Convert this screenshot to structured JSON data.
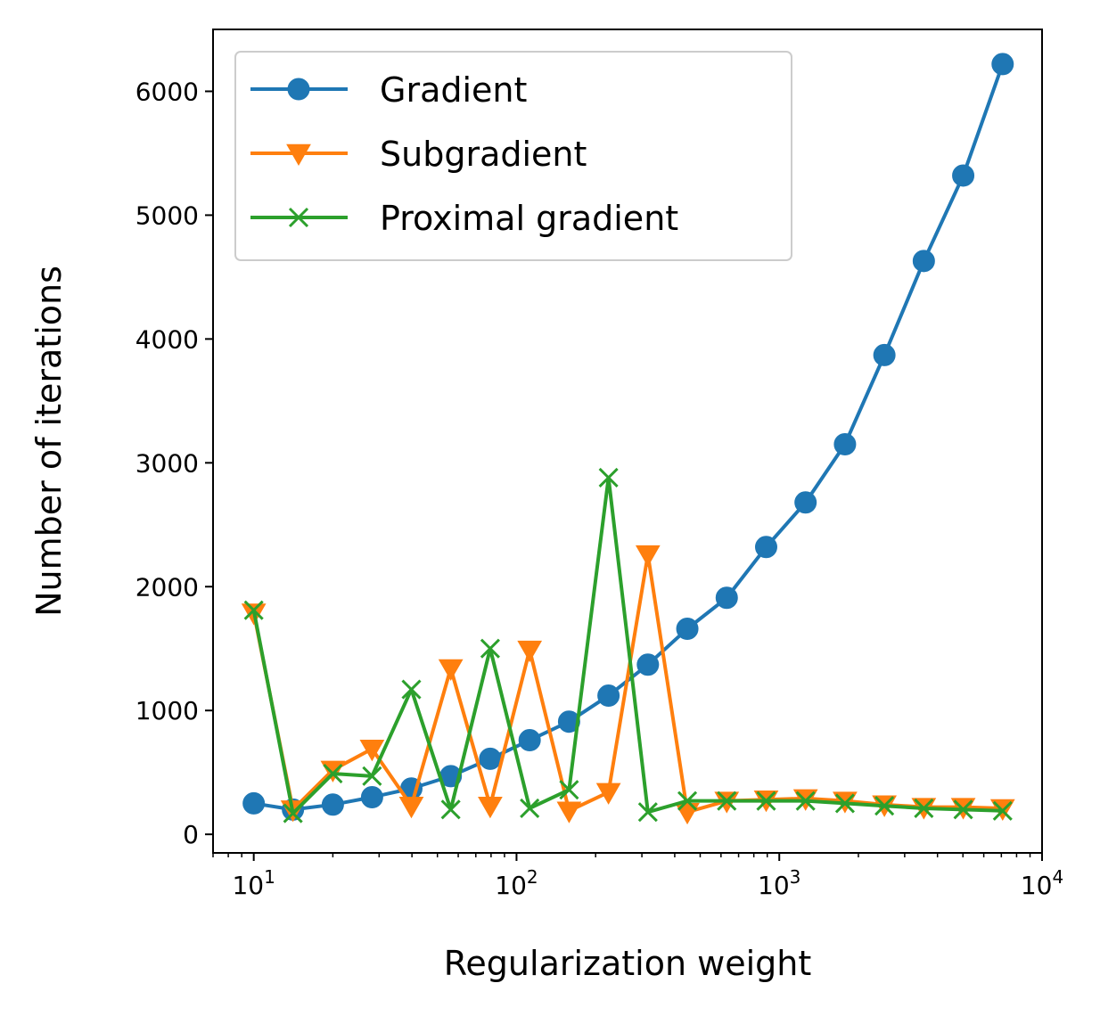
{
  "chart_data": {
    "type": "line",
    "title": "",
    "xlabel": "Regularization weight",
    "ylabel": "Number of iterations",
    "xscale": "log",
    "xlim": [
      7.0,
      10000
    ],
    "ylim": [
      -150,
      6500
    ],
    "grid": false,
    "legend_position": "top-left",
    "x": [
      10.0,
      14.1,
      20.0,
      28.2,
      39.8,
      56.2,
      79.4,
      112.2,
      158.5,
      223.9,
      316.2,
      446.7,
      631.0,
      891.3,
      1258.9,
      1778.3,
      2511.9,
      3548.1,
      5011.9,
      7079.5
    ],
    "x_ticks": [
      {
        "value": 10,
        "base": "10",
        "exp": "1"
      },
      {
        "value": 100,
        "base": "10",
        "exp": "2"
      },
      {
        "value": 1000,
        "base": "10",
        "exp": "3"
      },
      {
        "value": 10000,
        "base": "10",
        "exp": "4"
      }
    ],
    "y_ticks": [
      {
        "value": 0,
        "label": "0"
      },
      {
        "value": 1000,
        "label": "1000"
      },
      {
        "value": 2000,
        "label": "2000"
      },
      {
        "value": 3000,
        "label": "3000"
      },
      {
        "value": 4000,
        "label": "4000"
      },
      {
        "value": 5000,
        "label": "5000"
      },
      {
        "value": 6000,
        "label": "6000"
      }
    ],
    "series": [
      {
        "name": "Gradient",
        "color": "#1f77b4",
        "marker": "circle",
        "values": [
          250,
          200,
          240,
          300,
          370,
          470,
          610,
          760,
          910,
          1120,
          1370,
          1660,
          1910,
          2320,
          2680,
          3150,
          3870,
          4630,
          5320,
          6220
        ]
      },
      {
        "name": "Subgradient",
        "color": "#ff7f0e",
        "marker": "triangle-down",
        "values": [
          1790,
          200,
          520,
          690,
          230,
          1340,
          230,
          1490,
          190,
          340,
          2260,
          180,
          270,
          280,
          290,
          270,
          240,
          220,
          220,
          210
        ]
      },
      {
        "name": "Proximal gradient",
        "color": "#2ca02c",
        "marker": "x",
        "values": [
          1810,
          170,
          490,
          470,
          1170,
          200,
          1500,
          210,
          360,
          2880,
          180,
          270,
          270,
          270,
          270,
          250,
          230,
          210,
          200,
          190
        ]
      }
    ]
  }
}
